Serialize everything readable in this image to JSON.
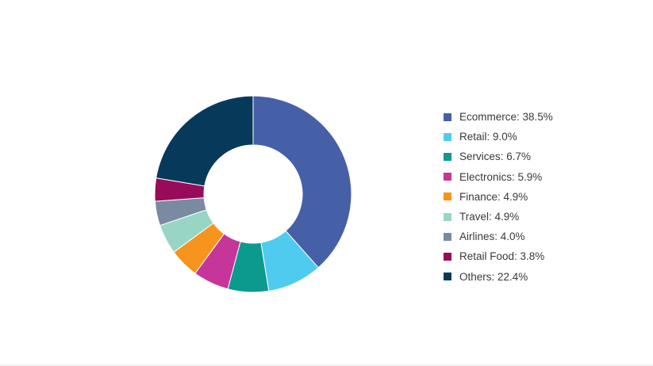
{
  "chart_data": {
    "type": "pie",
    "title": "",
    "legend_position": "right",
    "value_unit": "%",
    "slices": [
      {
        "label": "Ecommerce",
        "value": 38.5,
        "display": "Ecommerce: 38.5%",
        "color": "#4660a8"
      },
      {
        "label": "Retail",
        "value": 9.0,
        "display": "Retail: 9.0%",
        "color": "#4ecbef"
      },
      {
        "label": "Services",
        "value": 6.7,
        "display": "Services: 6.7%",
        "color": "#0b9a8d"
      },
      {
        "label": "Electronics",
        "value": 5.9,
        "display": "Electronics: 5.9%",
        "color": "#c6359a"
      },
      {
        "label": "Finance",
        "value": 4.9,
        "display": "Finance: 4.9%",
        "color": "#f7941d"
      },
      {
        "label": "Travel",
        "value": 4.9,
        "display": "Travel: 4.9%",
        "color": "#98d5c5"
      },
      {
        "label": "Airlines",
        "value": 4.0,
        "display": "Airlines: 4.0%",
        "color": "#7a8aa0"
      },
      {
        "label": "Retail Food",
        "value": 3.8,
        "display": "Retail Food: 3.8%",
        "color": "#980b5a"
      },
      {
        "label": "Others",
        "value": 22.4,
        "display": "Others: 22.4%",
        "color": "#073a5a"
      }
    ]
  }
}
